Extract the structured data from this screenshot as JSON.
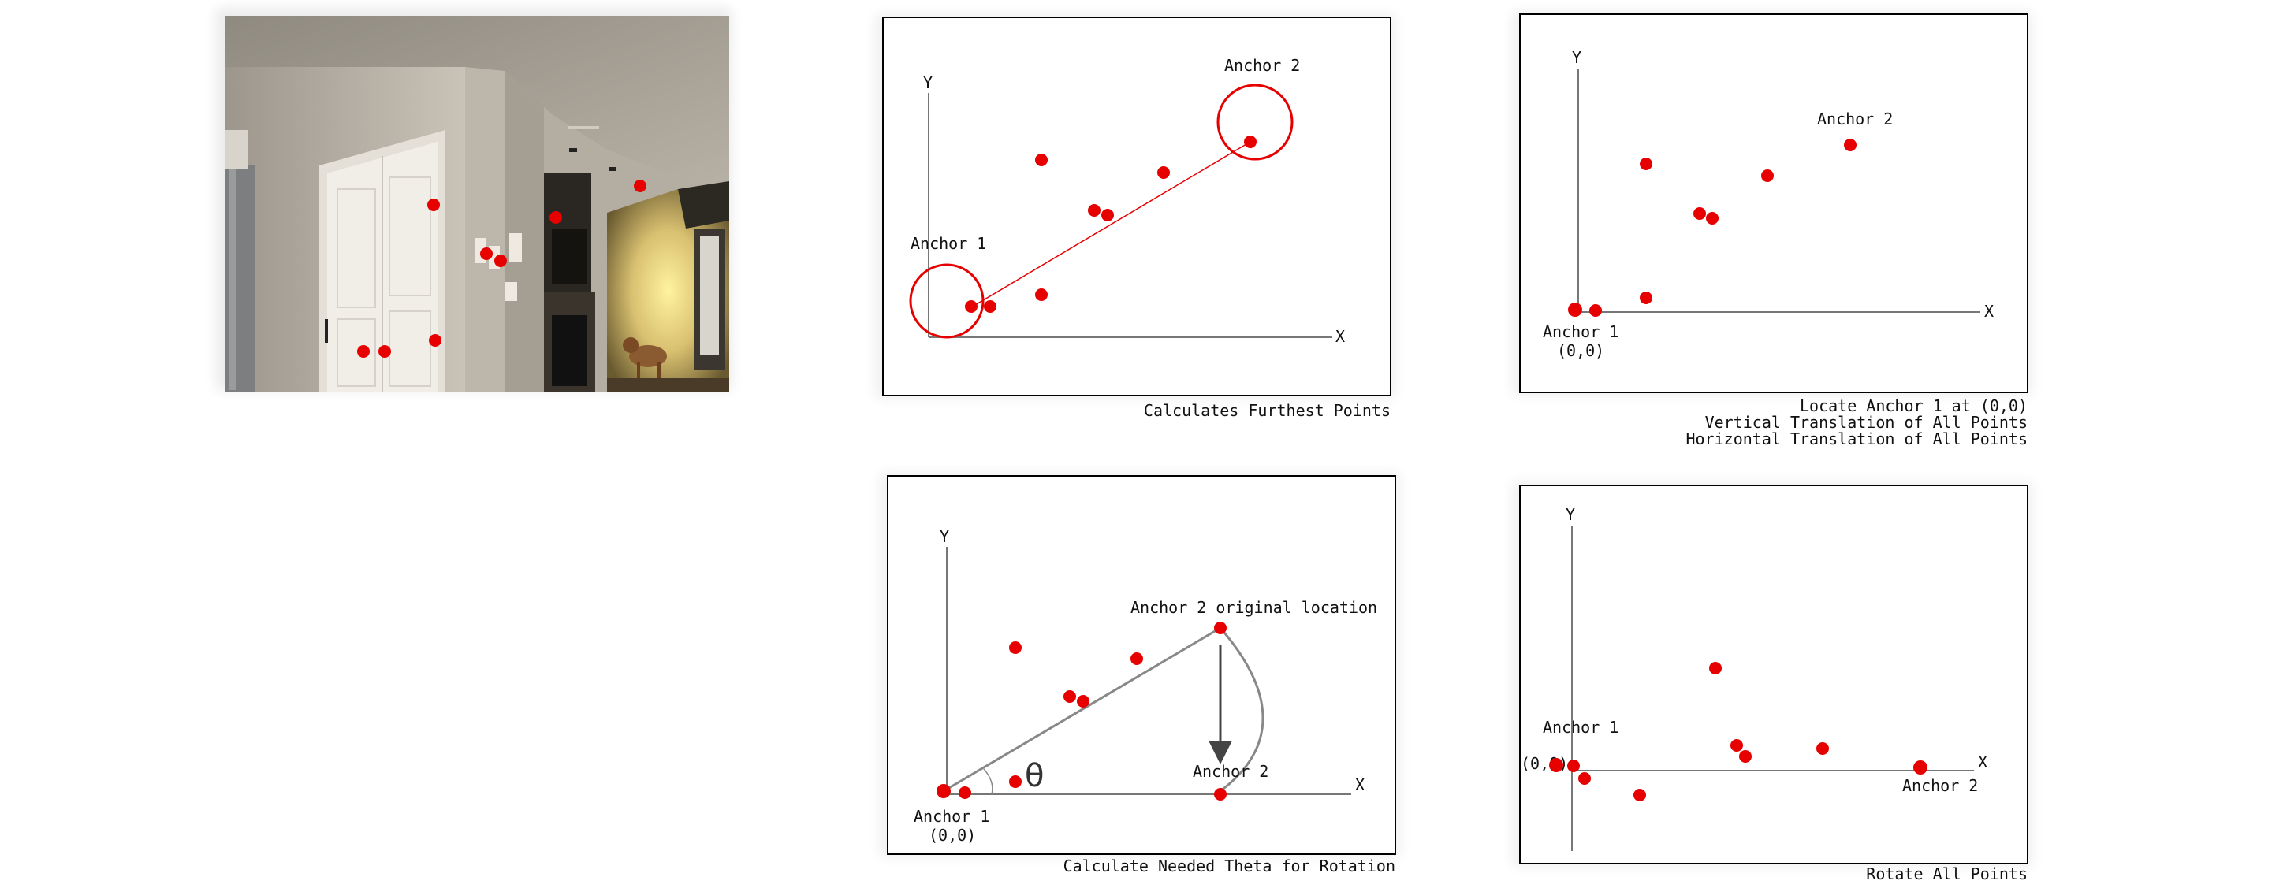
{
  "photo": {
    "scene": "kitchen-interior-with-doors-and-dog"
  },
  "panel1": {
    "y_axis": "Y",
    "x_axis": "X",
    "anchor1_label": "Anchor 1",
    "anchor2_label": "Anchor 2",
    "caption": "Calculates Furthest Points"
  },
  "panel2": {
    "y_axis": "Y",
    "x_axis": "X",
    "anchor1_label": "Anchor 1",
    "anchor1_coord": "(0,0)",
    "anchor2_label": "Anchor 2",
    "caption_line1": "Locate Anchor 1 at (0,0)",
    "caption_line2": "Vertical Translation of All Points",
    "caption_line3": "Horizontal Translation of All Points"
  },
  "panel3": {
    "y_axis": "Y",
    "x_axis": "X",
    "anchor1_label": "Anchor 1",
    "anchor1_coord": "(0,0)",
    "anchor2_original_label": "Anchor 2 original location",
    "anchor2_label": "Anchor 2",
    "theta": "θ",
    "caption": "Calculate Needed Theta for Rotation"
  },
  "panel4": {
    "y_axis": "Y",
    "x_axis": "X",
    "anchor1_label": "Anchor 1",
    "anchor1_coord": "(0,0)",
    "anchor2_label": "Anchor 2",
    "caption": "Rotate All Points"
  },
  "colors": {
    "point": "#e60000",
    "axis": "#777777",
    "frame": "#000000"
  }
}
